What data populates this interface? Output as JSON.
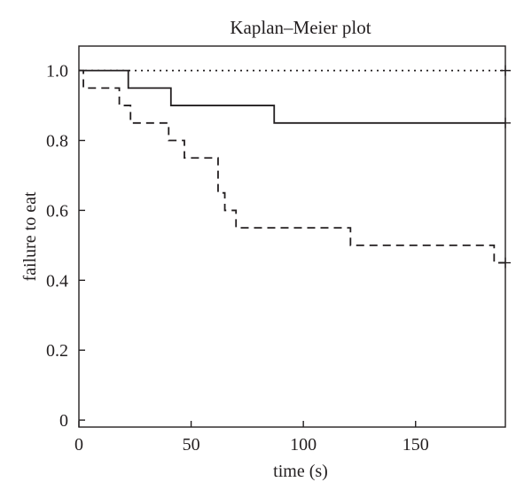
{
  "chart_data": {
    "type": "line",
    "subtype": "kaplan-meier step plot",
    "title": "Kaplan–Meier plot",
    "xlabel": "time (s)",
    "ylabel": "failure to eat",
    "xlim": [
      0,
      190
    ],
    "ylim": [
      -0.02,
      1.07
    ],
    "x_ticks": [
      0,
      50,
      100,
      150
    ],
    "y_ticks": [
      0,
      0.2,
      0.4,
      0.6,
      0.8,
      1.0
    ],
    "x_tick_labels": [
      "0",
      "50",
      "100",
      "150"
    ],
    "y_tick_labels": [
      "0",
      "0.2",
      "0.4",
      "0.6",
      "0.8",
      "1.0"
    ],
    "grid": false,
    "legend": "none",
    "series": [
      {
        "style": "dotted",
        "color": "#231f20",
        "steps": [
          [
            0,
            1.0
          ],
          [
            190,
            1.0
          ]
        ],
        "censor_marks": [
          [
            190,
            1.0
          ]
        ]
      },
      {
        "style": "solid",
        "color": "#231f20",
        "steps": [
          [
            0,
            1.0
          ],
          [
            22,
            0.95
          ],
          [
            41,
            0.9
          ],
          [
            87,
            0.85
          ],
          [
            190,
            0.85
          ]
        ],
        "censor_marks": [
          [
            190,
            0.85
          ]
        ]
      },
      {
        "style": "dashed",
        "color": "#231f20",
        "steps": [
          [
            0,
            1.0
          ],
          [
            2,
            0.95
          ],
          [
            18,
            0.9
          ],
          [
            23,
            0.85
          ],
          [
            40,
            0.8
          ],
          [
            47,
            0.75
          ],
          [
            62,
            0.65
          ],
          [
            65,
            0.6
          ],
          [
            70,
            0.55
          ],
          [
            121,
            0.5
          ],
          [
            185,
            0.45
          ],
          [
            190,
            0.45
          ]
        ],
        "censor_marks": [
          [
            190,
            0.45
          ]
        ]
      }
    ]
  }
}
